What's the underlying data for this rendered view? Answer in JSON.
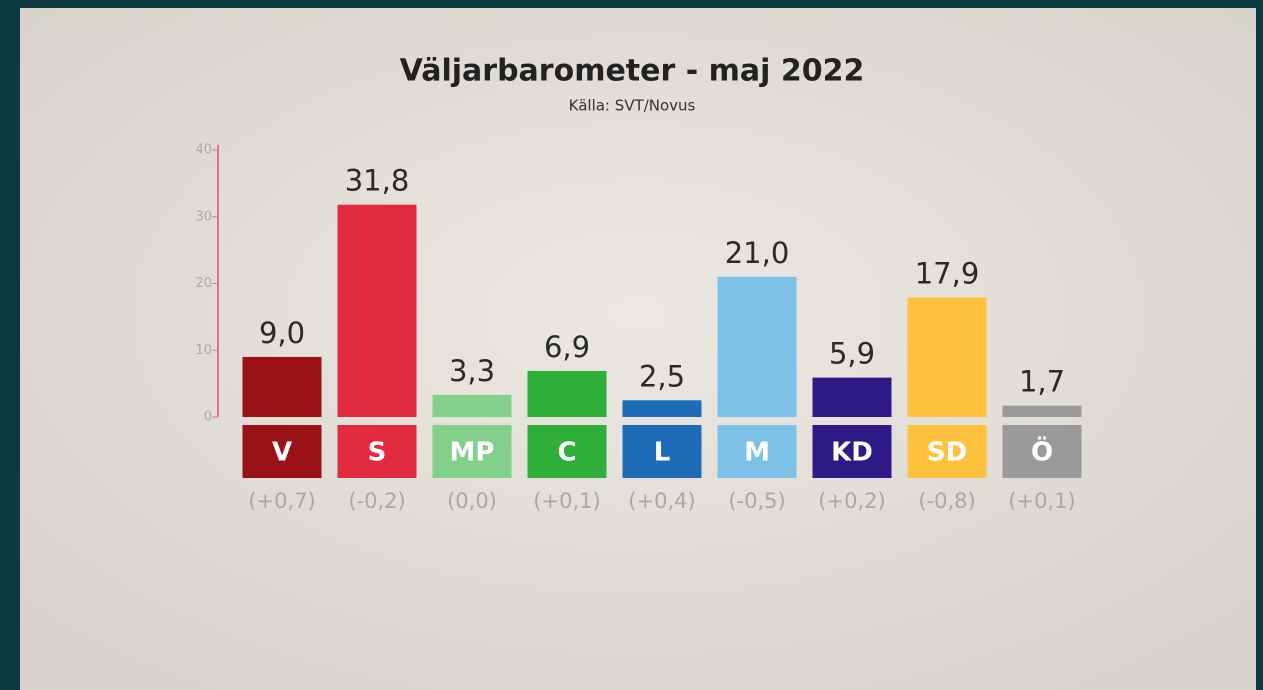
{
  "chart_data": {
    "type": "bar",
    "title": "Väljarbarometer - maj 2022",
    "subtitle": "Källa: SVT/Novus",
    "categories": [
      "V",
      "S",
      "MP",
      "C",
      "L",
      "M",
      "KD",
      "SD",
      "Ö"
    ],
    "values": [
      9.0,
      31.8,
      3.3,
      6.9,
      2.5,
      21.0,
      5.9,
      17.9,
      1.7
    ],
    "value_labels": [
      "9,0",
      "31,8",
      "3,3",
      "6,9",
      "2,5",
      "21,0",
      "5,9",
      "17,9",
      "1,7"
    ],
    "change_labels": [
      "(+0,7)",
      "(-0,2)",
      "(0,0)",
      "(+0,1)",
      "(+0,4)",
      "(-0,5)",
      "(+0,2)",
      "(-0,8)",
      "(+0,1)"
    ],
    "colors": [
      "#9b1118",
      "#e32b40",
      "#83d08a",
      "#2fae3a",
      "#1e6bb8",
      "#7dc1e6",
      "#2e1a86",
      "#fdc13c",
      "#9a9a9a"
    ],
    "ylim": [
      0,
      40
    ],
    "yticks": [
      0,
      10,
      20,
      30,
      40
    ]
  }
}
